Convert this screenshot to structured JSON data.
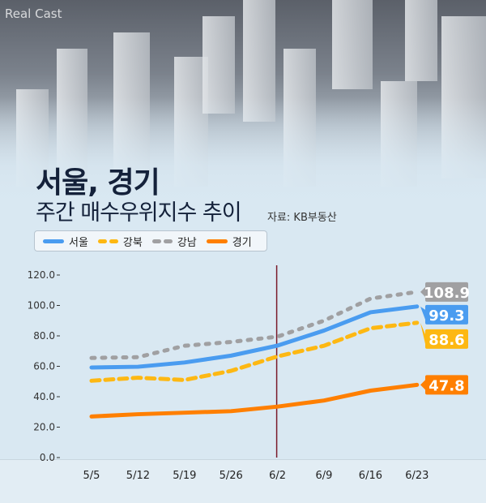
{
  "logo": "Real Cast",
  "header": {
    "title": "서울, 경기",
    "subtitle": "주간 매수우위지수 추이",
    "source": "자료: KB부동산"
  },
  "chart_data": {
    "type": "line",
    "title": "서울, 경기 주간 매수우위지수 추이",
    "categories": [
      "5/5",
      "5/12",
      "5/19",
      "5/26",
      "6/2",
      "6/9",
      "6/16",
      "6/23"
    ],
    "yticks": [
      "0.0",
      "20.0",
      "40.0",
      "60.0",
      "80.0",
      "100.0",
      "120.0"
    ],
    "ylim": [
      0,
      120
    ],
    "highlight_category": "6/2",
    "legend_position": "top-left",
    "series": [
      {
        "name": "서울",
        "color": "#4a9cf0",
        "style": "solid",
        "values": [
          59.2,
          59.7,
          62.5,
          67.0,
          73.6,
          83.5,
          95.5,
          99.3
        ],
        "end_label": "99.3"
      },
      {
        "name": "강북",
        "color": "#fdb813",
        "style": "dashed",
        "values": [
          50.5,
          52.5,
          51.0,
          57.0,
          66.5,
          73.5,
          85.0,
          88.6
        ],
        "end_label": "88.6"
      },
      {
        "name": "강남",
        "color": "#a0a0a2",
        "style": "dotted",
        "values": [
          65.5,
          66.0,
          73.5,
          76.0,
          79.5,
          90.0,
          104.5,
          108.9
        ],
        "end_label": "108.9"
      },
      {
        "name": "경기",
        "color": "#ff7f00",
        "style": "solid",
        "values": [
          27.0,
          28.5,
          29.5,
          30.5,
          33.5,
          37.5,
          44.0,
          47.8
        ],
        "end_label": "47.8"
      }
    ]
  }
}
